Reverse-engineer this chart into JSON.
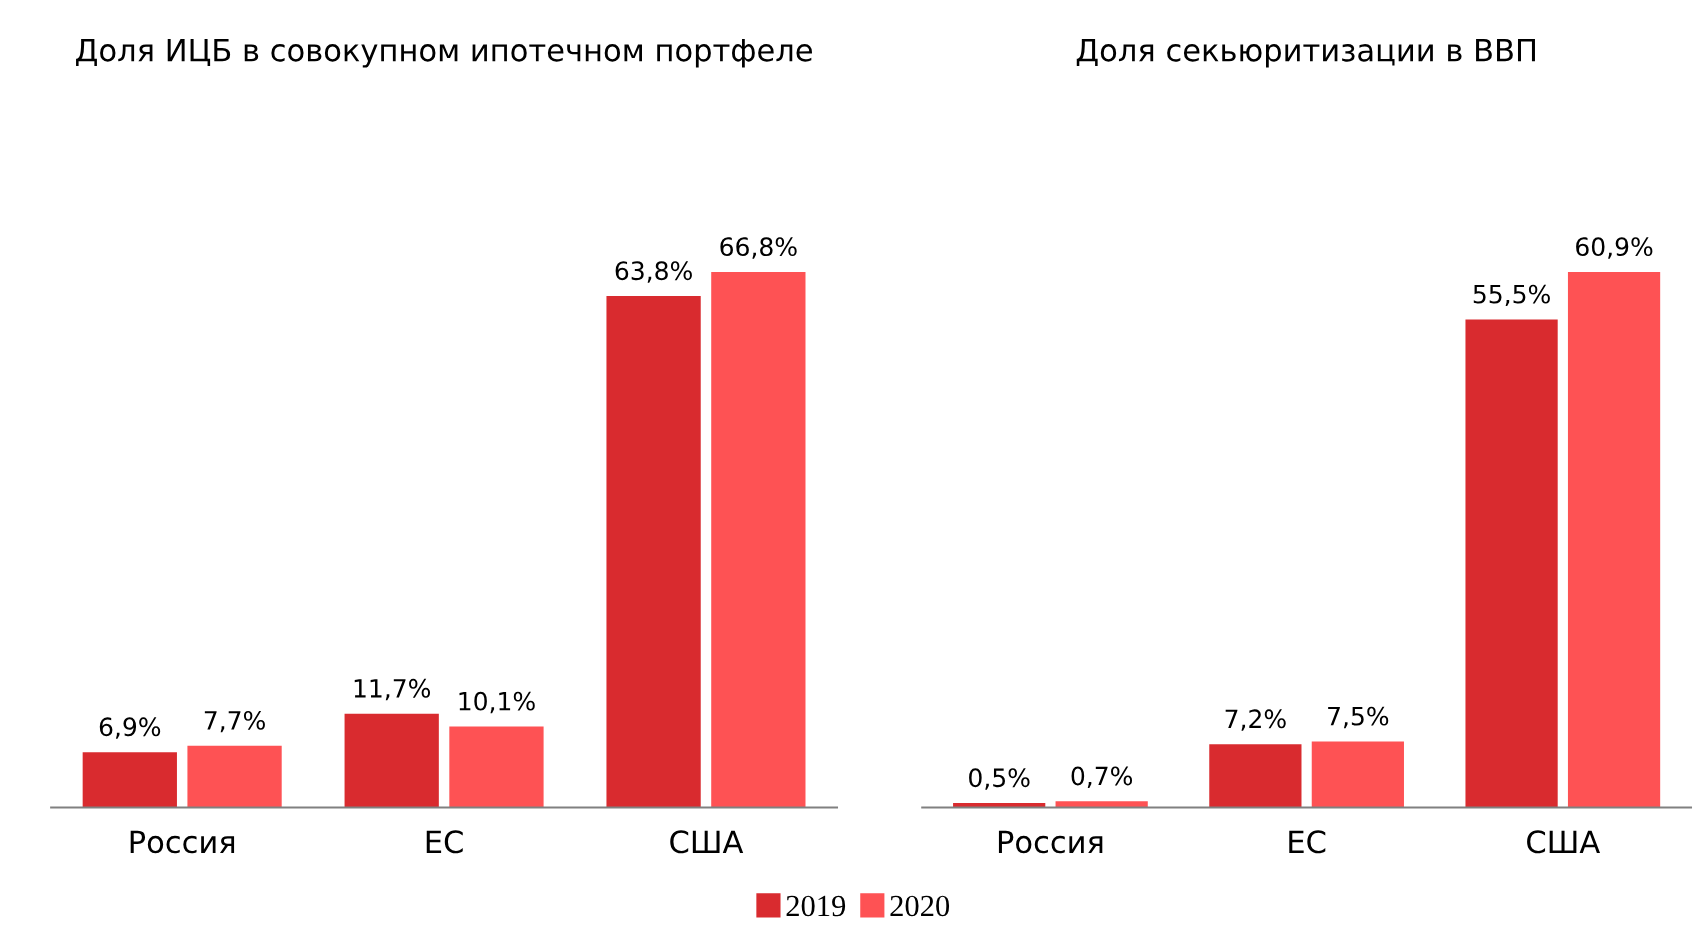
{
  "chart_data": [
    {
      "type": "bar",
      "title": "Доля ИЦБ в совокупном ипотечном портфеле",
      "categories": [
        "Россия",
        "ЕС",
        "США"
      ],
      "legend": "bottom",
      "series": [
        {
          "name": "2019",
          "color": "#d92b2f",
          "values": [
            6.9,
            11.7,
            63.8
          ],
          "value_labels": [
            "6,9%",
            "11,7%",
            "63,8%"
          ]
        },
        {
          "name": "2020",
          "color": "#fe5254",
          "values": [
            7.7,
            10.1,
            66.8
          ],
          "value_labels": [
            "7,7%",
            "10,1%",
            "66,8%"
          ]
        }
      ]
    },
    {
      "type": "bar",
      "title": "Доля секьюритизации в ВВП",
      "categories": [
        "Россия",
        "ЕС",
        "США"
      ],
      "series": [
        {
          "color": "#d92b2f",
          "values": [
            0.5,
            7.2,
            55.5
          ],
          "value_labels": [
            "0,5%",
            "7,2%",
            "55,5%"
          ]
        },
        {
          "color": "#fe5254",
          "values": [
            0.7,
            7.5,
            60.9
          ],
          "value_labels": [
            "0,7%",
            "7,5%",
            "60,9%"
          ]
        }
      ]
    }
  ]
}
